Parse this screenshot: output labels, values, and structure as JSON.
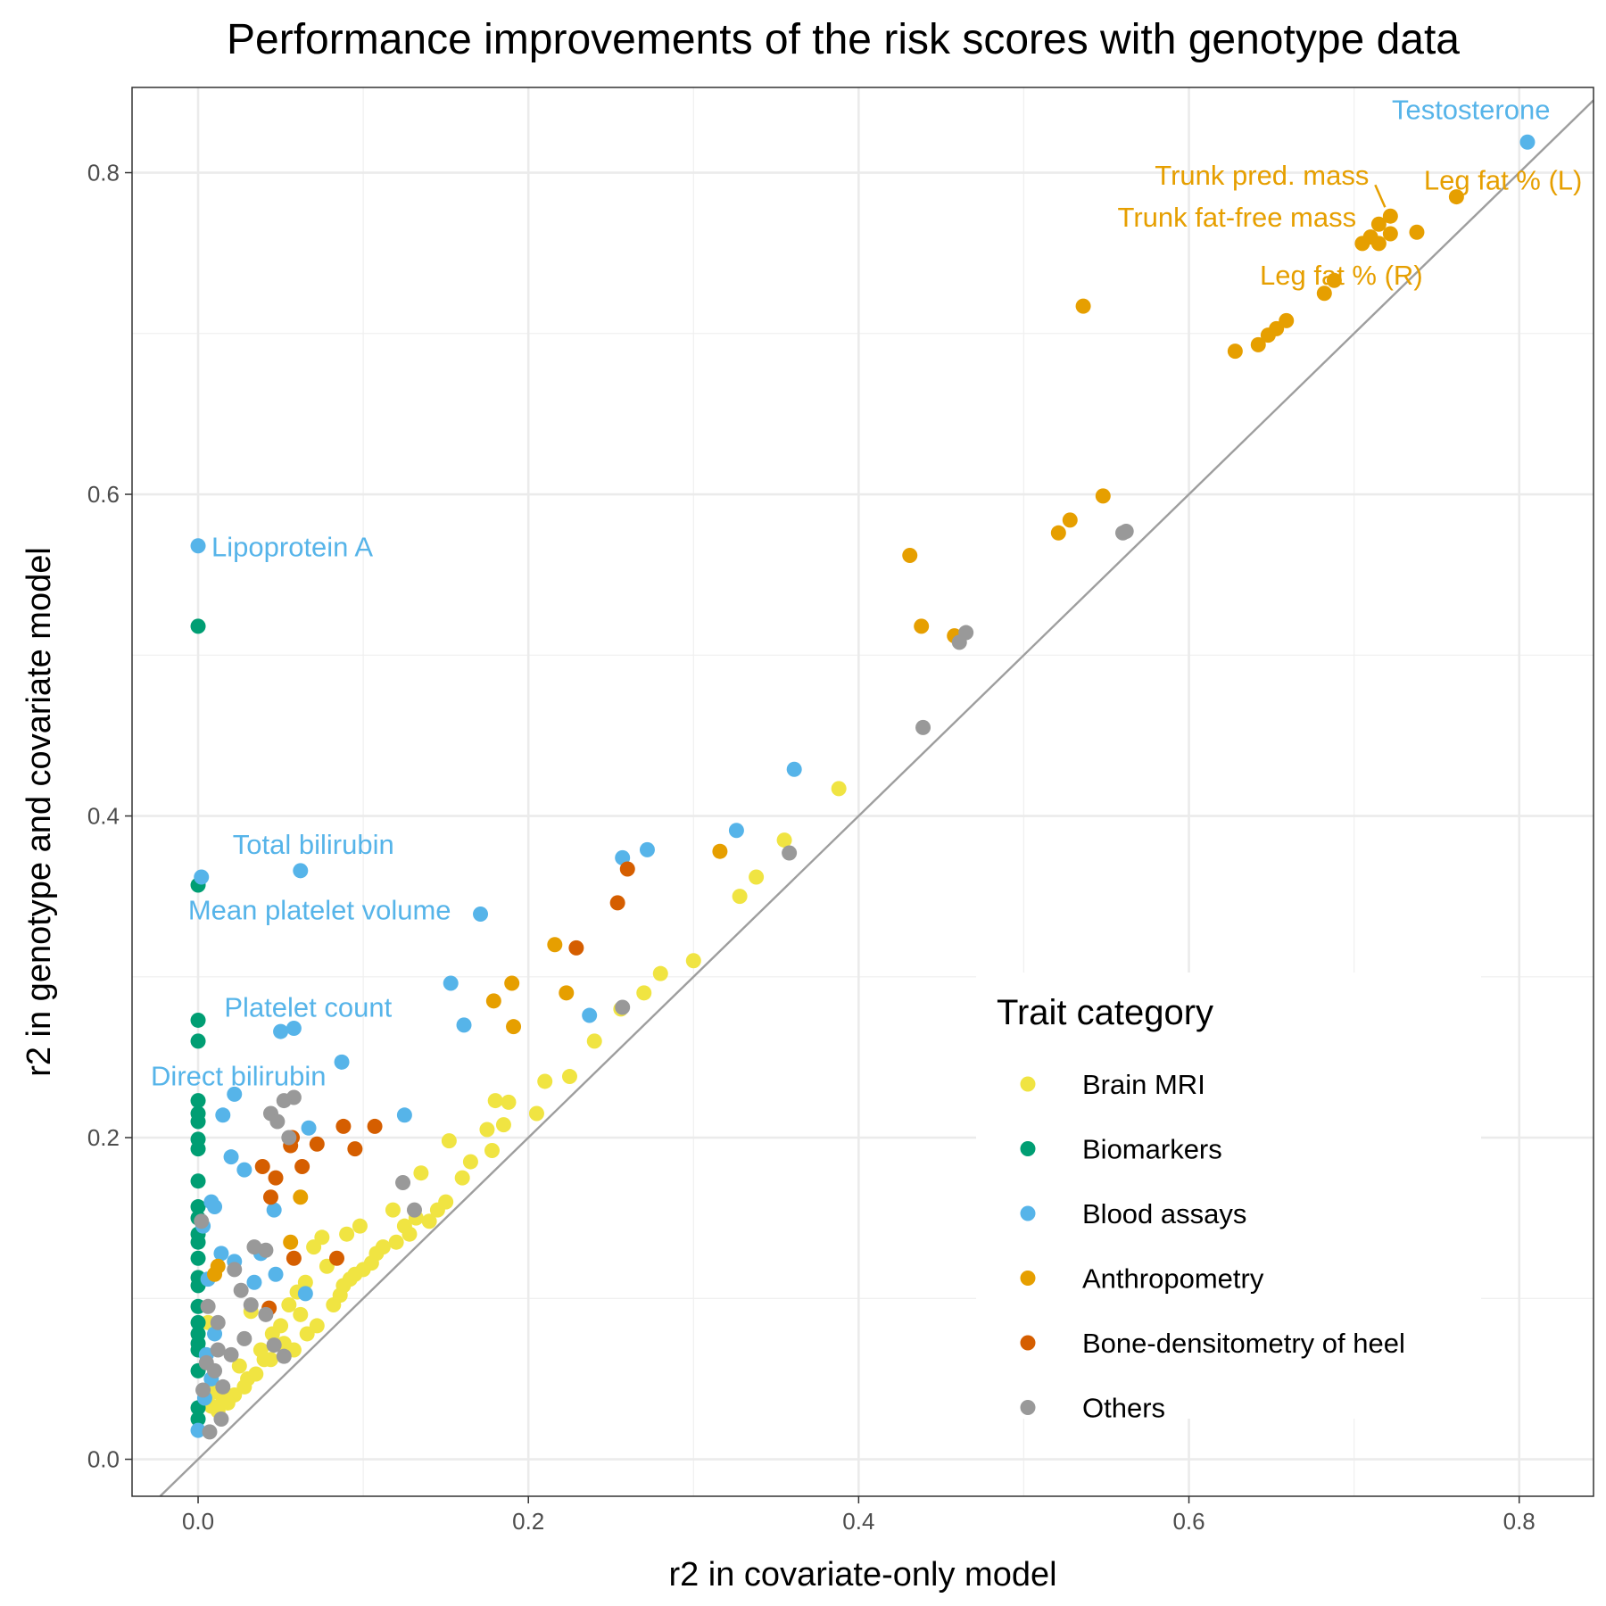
{
  "chart_data": {
    "type": "scatter",
    "title": "Performance improvements of the risk scores with genotype data",
    "xlabel": "r2 in covariate-only model",
    "ylabel": "r2 in genotype and covariate model",
    "xlim": [
      -0.04,
      0.845
    ],
    "ylim": [
      -0.023,
      0.853
    ],
    "xticks": [
      0.0,
      0.2,
      0.4,
      0.6,
      0.8
    ],
    "yticks": [
      0.0,
      0.2,
      0.4,
      0.6,
      0.8
    ],
    "xtick_labels": [
      "0.0",
      "0.2",
      "0.4",
      "0.6",
      "0.8"
    ],
    "ytick_labels": [
      "0.0",
      "0.2",
      "0.4",
      "0.6",
      "0.8"
    ],
    "grid": true,
    "reference_line": "y = x",
    "legend": {
      "title": "Trait category",
      "placement": "bottom-right inside plot",
      "entries": [
        {
          "name": "Brain MRI",
          "color": "#F0E442"
        },
        {
          "name": "Biomarkers",
          "color": "#009E73"
        },
        {
          "name": "Blood assays",
          "color": "#56B4E9"
        },
        {
          "name": "Anthropometry",
          "color": "#E69F00"
        },
        {
          "name": "Bone-densitometry of heel",
          "color": "#D55E00"
        },
        {
          "name": "Others",
          "color": "#999999"
        }
      ]
    },
    "annotations": [
      {
        "text": "Testosterone",
        "x": 0.805,
        "y": 0.819,
        "color": "#56B4E9"
      },
      {
        "text": "Trunk pred. mass",
        "x": 0.722,
        "y": 0.773,
        "color": "#E69F00"
      },
      {
        "text": "Leg fat % (L)",
        "x": 0.762,
        "y": 0.785,
        "color": "#E69F00"
      },
      {
        "text": "Trunk fat-free mass",
        "x": 0.71,
        "y": 0.758,
        "color": "#E69F00"
      },
      {
        "text": "Leg fat % (R)",
        "x": 0.72,
        "y": 0.756,
        "color": "#E69F00"
      },
      {
        "text": "Lipoprotein A",
        "x": 0.0,
        "y": 0.568,
        "color": "#56B4E9"
      },
      {
        "text": "Total bilirubin",
        "x": 0.062,
        "y": 0.367,
        "color": "#56B4E9"
      },
      {
        "text": "Mean platelet volume",
        "x": 0.171,
        "y": 0.339,
        "color": "#56B4E9"
      },
      {
        "text": "Platelet count",
        "x": 0.058,
        "y": 0.268,
        "color": "#56B4E9"
      },
      {
        "text": "Direct bilirubin",
        "x": 0.087,
        "y": 0.247,
        "color": "#56B4E9"
      }
    ],
    "series": [
      {
        "name": "Brain MRI",
        "color": "#F0E442",
        "points": [
          [
            0.388,
            0.417
          ],
          [
            0.355,
            0.385
          ],
          [
            0.338,
            0.362
          ],
          [
            0.328,
            0.35
          ],
          [
            0.3,
            0.31
          ],
          [
            0.28,
            0.302
          ],
          [
            0.27,
            0.29
          ],
          [
            0.256,
            0.28
          ],
          [
            0.24,
            0.26
          ],
          [
            0.225,
            0.238
          ],
          [
            0.21,
            0.235
          ],
          [
            0.205,
            0.215
          ],
          [
            0.188,
            0.222
          ],
          [
            0.18,
            0.223
          ],
          [
            0.185,
            0.208
          ],
          [
            0.175,
            0.205
          ],
          [
            0.178,
            0.192
          ],
          [
            0.152,
            0.198
          ],
          [
            0.165,
            0.185
          ],
          [
            0.16,
            0.175
          ],
          [
            0.15,
            0.16
          ],
          [
            0.135,
            0.178
          ],
          [
            0.118,
            0.155
          ],
          [
            0.14,
            0.148
          ],
          [
            0.128,
            0.14
          ],
          [
            0.112,
            0.132
          ],
          [
            0.098,
            0.145
          ],
          [
            0.09,
            0.14
          ],
          [
            0.105,
            0.122
          ],
          [
            0.095,
            0.115
          ],
          [
            0.088,
            0.108
          ],
          [
            0.078,
            0.12
          ],
          [
            0.075,
            0.138
          ],
          [
            0.07,
            0.132
          ],
          [
            0.065,
            0.11
          ],
          [
            0.06,
            0.104
          ],
          [
            0.062,
            0.09
          ],
          [
            0.055,
            0.096
          ],
          [
            0.05,
            0.083
          ],
          [
            0.052,
            0.072
          ],
          [
            0.045,
            0.078
          ],
          [
            0.04,
            0.062
          ],
          [
            0.038,
            0.068
          ],
          [
            0.035,
            0.053
          ],
          [
            0.03,
            0.05
          ],
          [
            0.028,
            0.045
          ],
          [
            0.025,
            0.058
          ],
          [
            0.022,
            0.04
          ],
          [
            0.018,
            0.035
          ],
          [
            0.015,
            0.038
          ],
          [
            0.012,
            0.03
          ],
          [
            0.01,
            0.042
          ],
          [
            0.008,
            0.033
          ],
          [
            0.032,
            0.092
          ],
          [
            0.044,
            0.062
          ],
          [
            0.058,
            0.068
          ],
          [
            0.066,
            0.078
          ],
          [
            0.072,
            0.083
          ],
          [
            0.082,
            0.096
          ],
          [
            0.086,
            0.102
          ],
          [
            0.092,
            0.112
          ],
          [
            0.1,
            0.118
          ],
          [
            0.108,
            0.128
          ],
          [
            0.12,
            0.135
          ],
          [
            0.125,
            0.145
          ],
          [
            0.132,
            0.15
          ],
          [
            0.145,
            0.155
          ],
          [
            0.006,
            0.085
          ]
        ]
      },
      {
        "name": "Biomarkers",
        "color": "#009E73",
        "points": [
          [
            0.0,
            0.518
          ],
          [
            0.0,
            0.357
          ],
          [
            0.0,
            0.273
          ],
          [
            0.0,
            0.26
          ],
          [
            0.0,
            0.223
          ],
          [
            0.0,
            0.215
          ],
          [
            0.0,
            0.21
          ],
          [
            0.0,
            0.199
          ],
          [
            0.0,
            0.193
          ],
          [
            0.0,
            0.173
          ],
          [
            0.0,
            0.157
          ],
          [
            0.0,
            0.15
          ],
          [
            0.0,
            0.14
          ],
          [
            0.0,
            0.135
          ],
          [
            0.0,
            0.125
          ],
          [
            0.0,
            0.113
          ],
          [
            0.0,
            0.108
          ],
          [
            0.0,
            0.095
          ],
          [
            0.0,
            0.085
          ],
          [
            0.0,
            0.078
          ],
          [
            0.0,
            0.072
          ],
          [
            0.0,
            0.068
          ],
          [
            0.0,
            0.055
          ],
          [
            0.0,
            0.032
          ],
          [
            0.0,
            0.025
          ]
        ]
      },
      {
        "name": "Blood assays",
        "color": "#56B4E9",
        "points": [
          [
            0.805,
            0.819
          ],
          [
            0.0,
            0.568
          ],
          [
            0.361,
            0.429
          ],
          [
            0.326,
            0.391
          ],
          [
            0.272,
            0.379
          ],
          [
            0.257,
            0.374
          ],
          [
            0.002,
            0.362
          ],
          [
            0.062,
            0.366
          ],
          [
            0.171,
            0.339
          ],
          [
            0.153,
            0.296
          ],
          [
            0.237,
            0.276
          ],
          [
            0.161,
            0.27
          ],
          [
            0.058,
            0.268
          ],
          [
            0.05,
            0.266
          ],
          [
            0.087,
            0.247
          ],
          [
            0.022,
            0.227
          ],
          [
            0.125,
            0.214
          ],
          [
            0.015,
            0.214
          ],
          [
            0.067,
            0.206
          ],
          [
            0.02,
            0.188
          ],
          [
            0.028,
            0.18
          ],
          [
            0.008,
            0.16
          ],
          [
            0.01,
            0.157
          ],
          [
            0.046,
            0.155
          ],
          [
            0.003,
            0.145
          ],
          [
            0.014,
            0.128
          ],
          [
            0.038,
            0.128
          ],
          [
            0.022,
            0.123
          ],
          [
            0.034,
            0.11
          ],
          [
            0.047,
            0.115
          ],
          [
            0.006,
            0.112
          ],
          [
            0.065,
            0.103
          ],
          [
            0.01,
            0.078
          ],
          [
            0.005,
            0.065
          ],
          [
            0.008,
            0.05
          ],
          [
            0.004,
            0.038
          ],
          [
            0.0,
            0.018
          ]
        ]
      },
      {
        "name": "Anthropometry",
        "color": "#E69F00",
        "points": [
          [
            0.762,
            0.785
          ],
          [
            0.738,
            0.763
          ],
          [
            0.722,
            0.773
          ],
          [
            0.715,
            0.768
          ],
          [
            0.722,
            0.762
          ],
          [
            0.715,
            0.756
          ],
          [
            0.71,
            0.76
          ],
          [
            0.705,
            0.756
          ],
          [
            0.688,
            0.733
          ],
          [
            0.682,
            0.725
          ],
          [
            0.659,
            0.708
          ],
          [
            0.653,
            0.703
          ],
          [
            0.648,
            0.699
          ],
          [
            0.642,
            0.693
          ],
          [
            0.628,
            0.689
          ],
          [
            0.536,
            0.717
          ],
          [
            0.548,
            0.599
          ],
          [
            0.528,
            0.584
          ],
          [
            0.521,
            0.576
          ],
          [
            0.431,
            0.562
          ],
          [
            0.438,
            0.518
          ],
          [
            0.458,
            0.512
          ],
          [
            0.316,
            0.378
          ],
          [
            0.216,
            0.32
          ],
          [
            0.19,
            0.296
          ],
          [
            0.223,
            0.29
          ],
          [
            0.179,
            0.285
          ],
          [
            0.191,
            0.269
          ],
          [
            0.062,
            0.163
          ],
          [
            0.056,
            0.135
          ],
          [
            0.012,
            0.12
          ],
          [
            0.01,
            0.115
          ]
        ]
      },
      {
        "name": "Bone-densitometry of heel",
        "color": "#D55E00",
        "points": [
          [
            0.26,
            0.367
          ],
          [
            0.254,
            0.346
          ],
          [
            0.229,
            0.318
          ],
          [
            0.107,
            0.207
          ],
          [
            0.088,
            0.207
          ],
          [
            0.057,
            0.2
          ],
          [
            0.072,
            0.196
          ],
          [
            0.056,
            0.195
          ],
          [
            0.095,
            0.193
          ],
          [
            0.063,
            0.182
          ],
          [
            0.039,
            0.182
          ],
          [
            0.047,
            0.175
          ],
          [
            0.044,
            0.163
          ],
          [
            0.058,
            0.125
          ],
          [
            0.084,
            0.125
          ],
          [
            0.043,
            0.094
          ]
        ]
      },
      {
        "name": "Others",
        "color": "#999999",
        "points": [
          [
            0.562,
            0.577
          ],
          [
            0.56,
            0.576
          ],
          [
            0.465,
            0.514
          ],
          [
            0.461,
            0.508
          ],
          [
            0.439,
            0.455
          ],
          [
            0.358,
            0.377
          ],
          [
            0.257,
            0.281
          ],
          [
            0.058,
            0.225
          ],
          [
            0.052,
            0.223
          ],
          [
            0.044,
            0.215
          ],
          [
            0.048,
            0.21
          ],
          [
            0.055,
            0.2
          ],
          [
            0.124,
            0.172
          ],
          [
            0.131,
            0.155
          ],
          [
            0.022,
            0.118
          ],
          [
            0.034,
            0.132
          ],
          [
            0.041,
            0.13
          ],
          [
            0.026,
            0.105
          ],
          [
            0.032,
            0.096
          ],
          [
            0.041,
            0.09
          ],
          [
            0.028,
            0.075
          ],
          [
            0.046,
            0.071
          ],
          [
            0.012,
            0.068
          ],
          [
            0.02,
            0.065
          ],
          [
            0.005,
            0.06
          ],
          [
            0.01,
            0.055
          ],
          [
            0.052,
            0.064
          ],
          [
            0.015,
            0.045
          ],
          [
            0.003,
            0.043
          ],
          [
            0.014,
            0.025
          ],
          [
            0.007,
            0.017
          ],
          [
            0.002,
            0.148
          ],
          [
            0.006,
            0.095
          ],
          [
            0.012,
            0.085
          ]
        ]
      }
    ]
  }
}
